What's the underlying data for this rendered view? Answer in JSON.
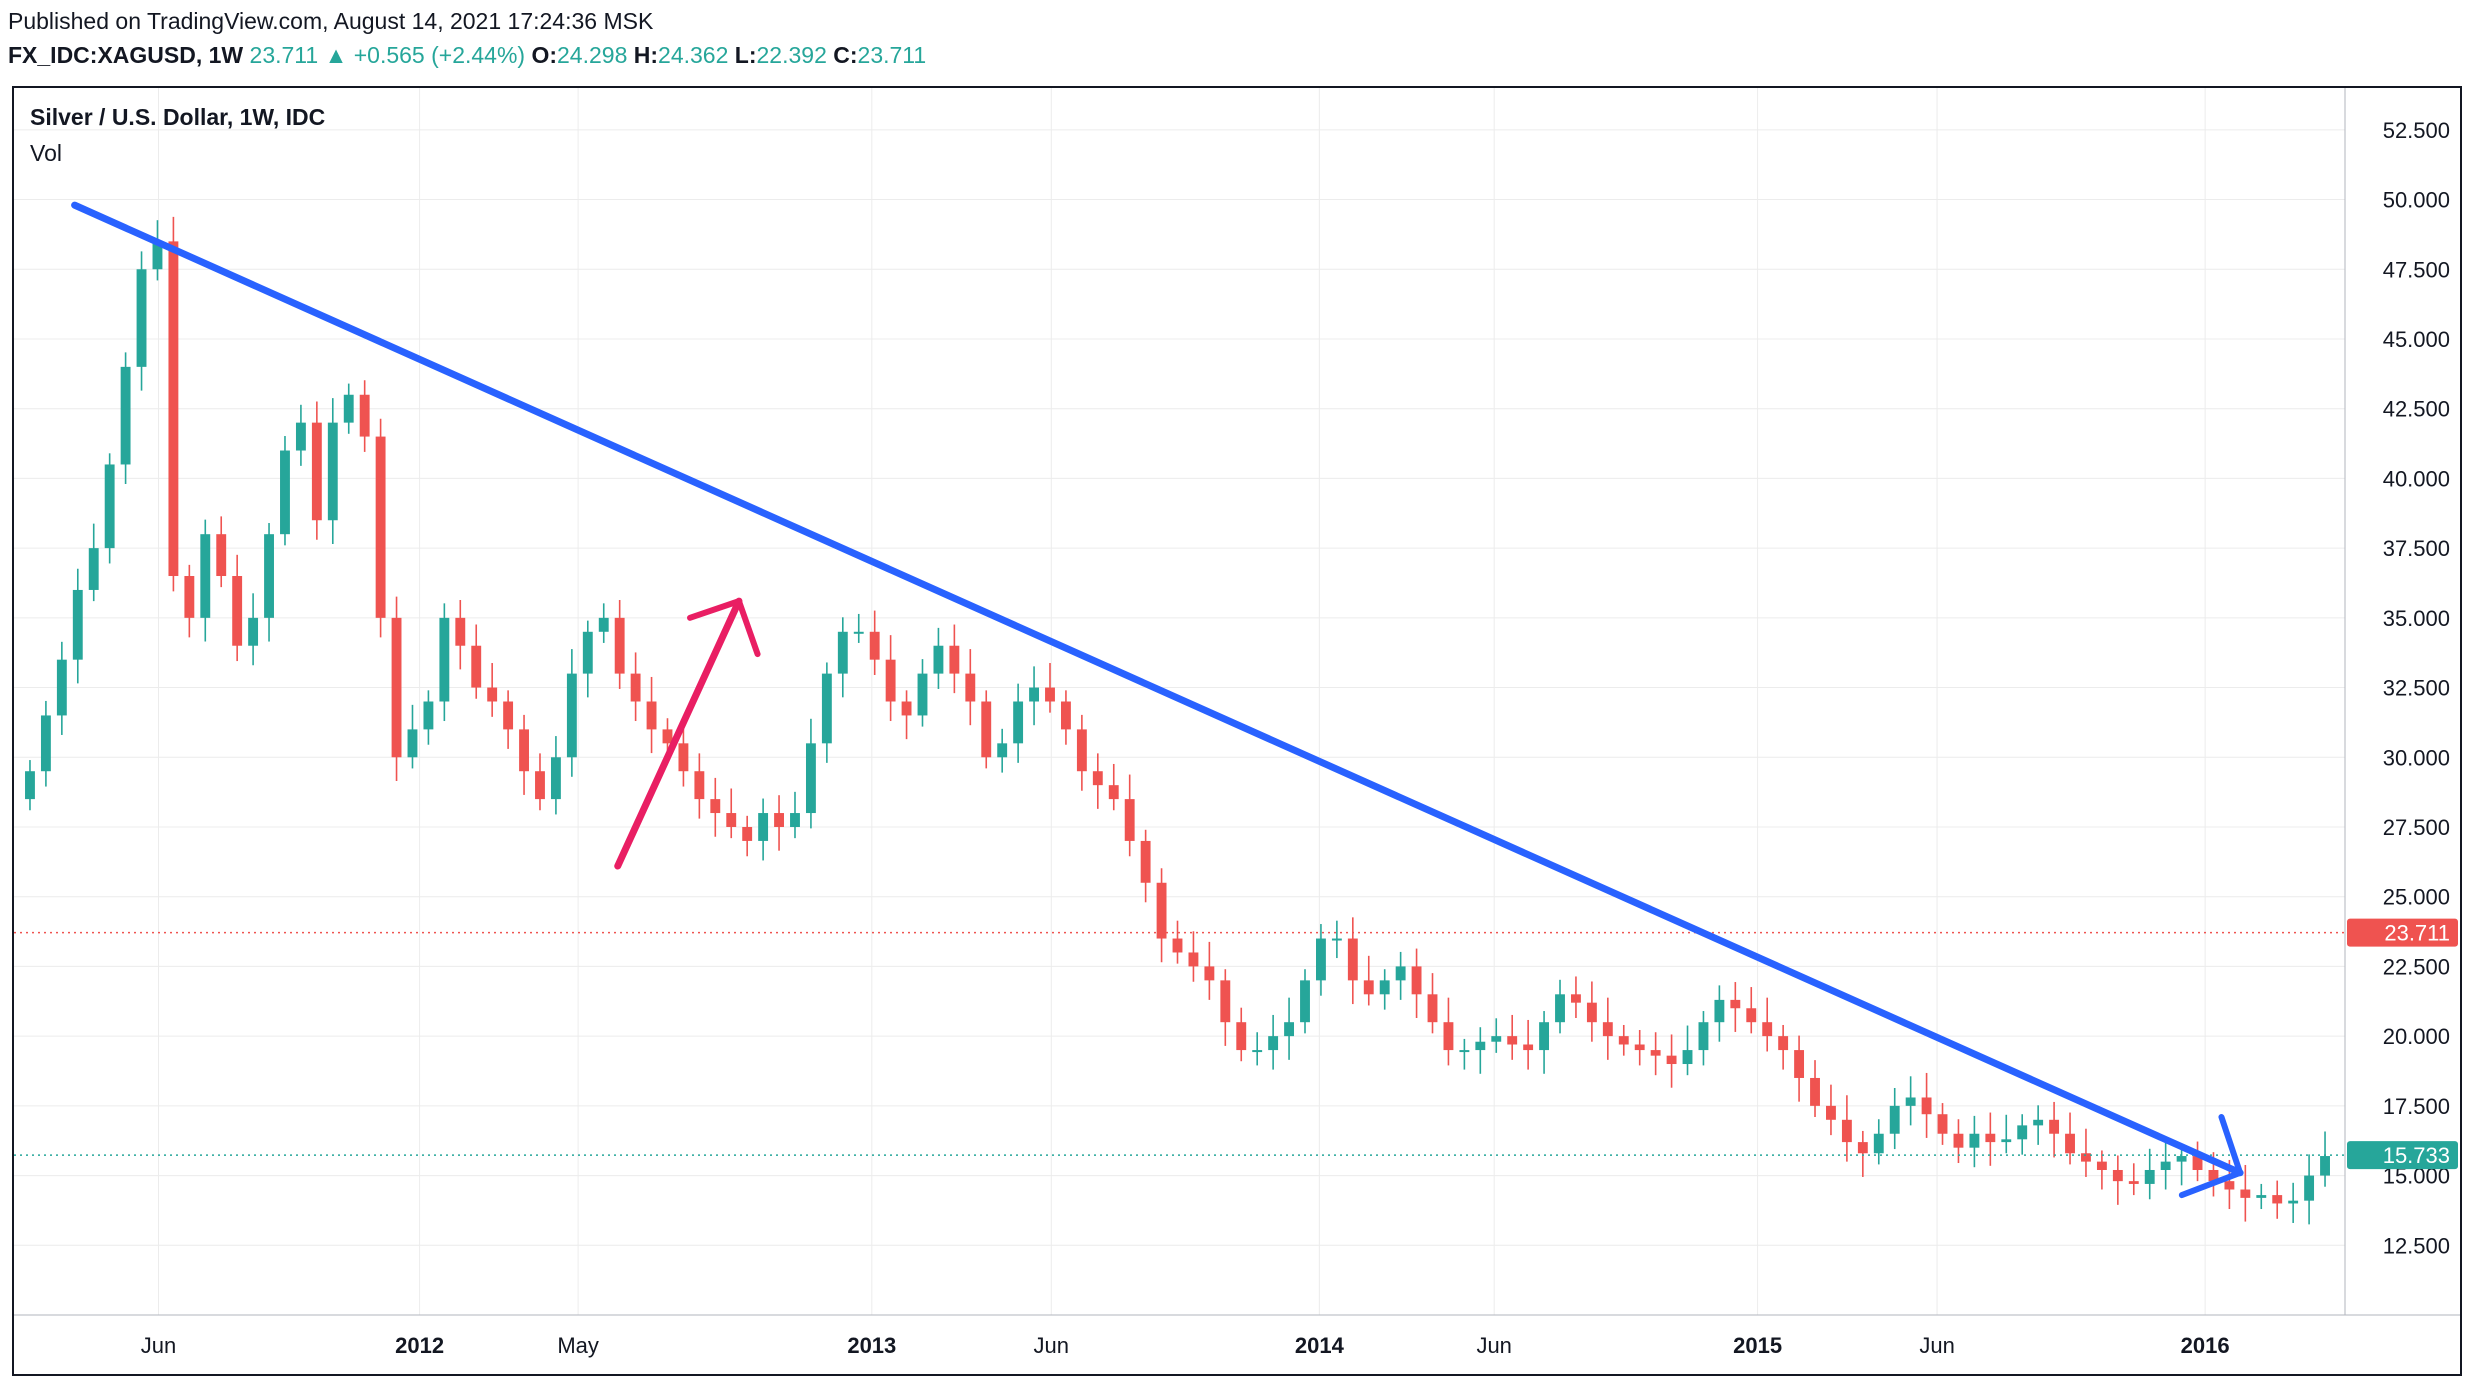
{
  "header": {
    "published": "Published on TradingView.com, August 14, 2021 17:24:36 MSK",
    "symbol": "FX_IDC:XAGUSD, 1W",
    "last": "23.711",
    "change": "+0.565 (+2.44%)",
    "open_label": "O:",
    "open": "24.298",
    "high_label": "H:",
    "high": "24.362",
    "low_label": "L:",
    "low": "22.392",
    "close_label": "C:",
    "close": "23.711"
  },
  "legend": {
    "title": "Silver / U.S. Dollar, 1W, IDC",
    "vol": "Vol"
  },
  "colors": {
    "up": "#26a69a",
    "down": "#ef5350",
    "trend": "#2962ff",
    "arrow_pink": "#e91e63",
    "grid": "#ececec"
  },
  "chart_data": {
    "type": "candlestick",
    "title": "Silver / U.S. Dollar, 1W, IDC",
    "ylim": [
      10,
      54
    ],
    "y_ticks": [
      "12.500",
      "15.000",
      "17.500",
      "20.000",
      "22.500",
      "25.000",
      "27.500",
      "30.000",
      "32.500",
      "35.000",
      "37.500",
      "40.000",
      "42.500",
      "45.000",
      "47.500",
      "50.000",
      "52.500"
    ],
    "x_ticks": [
      {
        "label": "Jun",
        "pos": 0.062
      },
      {
        "label": "2012",
        "pos": 0.174
      },
      {
        "label": "May",
        "pos": 0.242
      },
      {
        "label": "2013",
        "pos": 0.368
      },
      {
        "label": "Jun",
        "pos": 0.445
      },
      {
        "label": "2014",
        "pos": 0.56
      },
      {
        "label": "Jun",
        "pos": 0.635
      },
      {
        "label": "2015",
        "pos": 0.748
      },
      {
        "label": "Jun",
        "pos": 0.825
      },
      {
        "label": "2016",
        "pos": 0.94
      }
    ],
    "price_marker": {
      "value": 23.711,
      "label": "23.711",
      "color": "#ef5350"
    },
    "secondary_marker": {
      "value": 15.733,
      "label": "15.733",
      "color": "#26a69a"
    },
    "closes": [
      29.5,
      31.5,
      33.5,
      36,
      37.5,
      40.5,
      44,
      47.5,
      48.5,
      36.5,
      35,
      38,
      36.5,
      34,
      35,
      38,
      41,
      42,
      38.5,
      42,
      43,
      41.5,
      35,
      30,
      31,
      32,
      35,
      34,
      32.5,
      32,
      31,
      29.5,
      28.5,
      30,
      33,
      34.5,
      35,
      33,
      32,
      31,
      30.5,
      29.5,
      28.5,
      28,
      27.5,
      27,
      28,
      27.5,
      28,
      30.5,
      33,
      34.5,
      34.5,
      33.5,
      32,
      31.5,
      33,
      34,
      33,
      32,
      30,
      30.5,
      32,
      32.5,
      32,
      31,
      29.5,
      29,
      28.5,
      27,
      25.5,
      23.5,
      23,
      22.5,
      22,
      20.5,
      19.5,
      19.5,
      20,
      20.5,
      22,
      23.5,
      23.5,
      22,
      21.5,
      22,
      22.5,
      21.5,
      20.5,
      19.5,
      19.5,
      19.8,
      20,
      19.7,
      19.5,
      20.5,
      21.5,
      21.2,
      20.5,
      20,
      19.7,
      19.5,
      19.3,
      19,
      19.5,
      20.5,
      21.3,
      21,
      20.5,
      20,
      19.5,
      18.5,
      17.5,
      17,
      16.2,
      15.8,
      16.5,
      17.5,
      17.8,
      17.2,
      16.5,
      16,
      16.5,
      16.2,
      16.3,
      16.8,
      17,
      16.5,
      15.8,
      15.5,
      15.2,
      14.8,
      14.7,
      15.2,
      15.5,
      15.7,
      15.2,
      14.8,
      14.5,
      14.2,
      14.3,
      14,
      14.1,
      15,
      15.7
    ]
  }
}
